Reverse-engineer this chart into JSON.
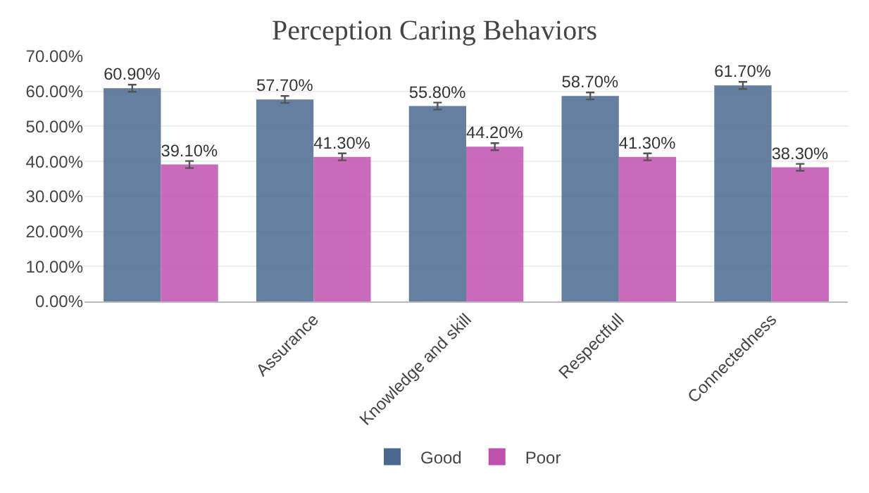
{
  "chart_data": {
    "type": "bar",
    "title": "Perception Caring Behaviors",
    "categories": [
      null,
      "Assurance",
      "Knowledge and skill",
      "Respectfull",
      "Connectedness"
    ],
    "series": [
      {
        "name": "Good",
        "color": "#4a6890",
        "values": [
          60.9,
          57.7,
          55.8,
          58.7,
          61.7
        ],
        "errors": [
          1,
          1,
          1,
          1,
          1
        ],
        "value_labels": [
          "60.90%",
          "57.70%",
          "55.80%",
          "58.70%",
          "61.70%"
        ]
      },
      {
        "name": "Poor",
        "color": "#c050b0",
        "values": [
          39.1,
          41.3,
          44.2,
          41.3,
          38.3
        ],
        "errors": [
          1,
          1,
          1,
          1,
          1
        ],
        "value_labels": [
          "39.10%",
          "41.30%",
          "44.20%",
          "41.30%",
          "38.30%"
        ]
      }
    ],
    "ylim": [
      0,
      70
    ],
    "yticks": [
      {
        "value": 0,
        "label": "0.00%"
      },
      {
        "value": 10,
        "label": "10.00%"
      },
      {
        "value": 20,
        "label": "20.00%"
      },
      {
        "value": 30,
        "label": "30.00%"
      },
      {
        "value": 40,
        "label": "40.00%"
      },
      {
        "value": 50,
        "label": "50.00%"
      },
      {
        "value": 60,
        "label": "60.00%"
      },
      {
        "value": 70,
        "label": "70.00%"
      }
    ],
    "grid": "y",
    "legend": "bottom"
  }
}
